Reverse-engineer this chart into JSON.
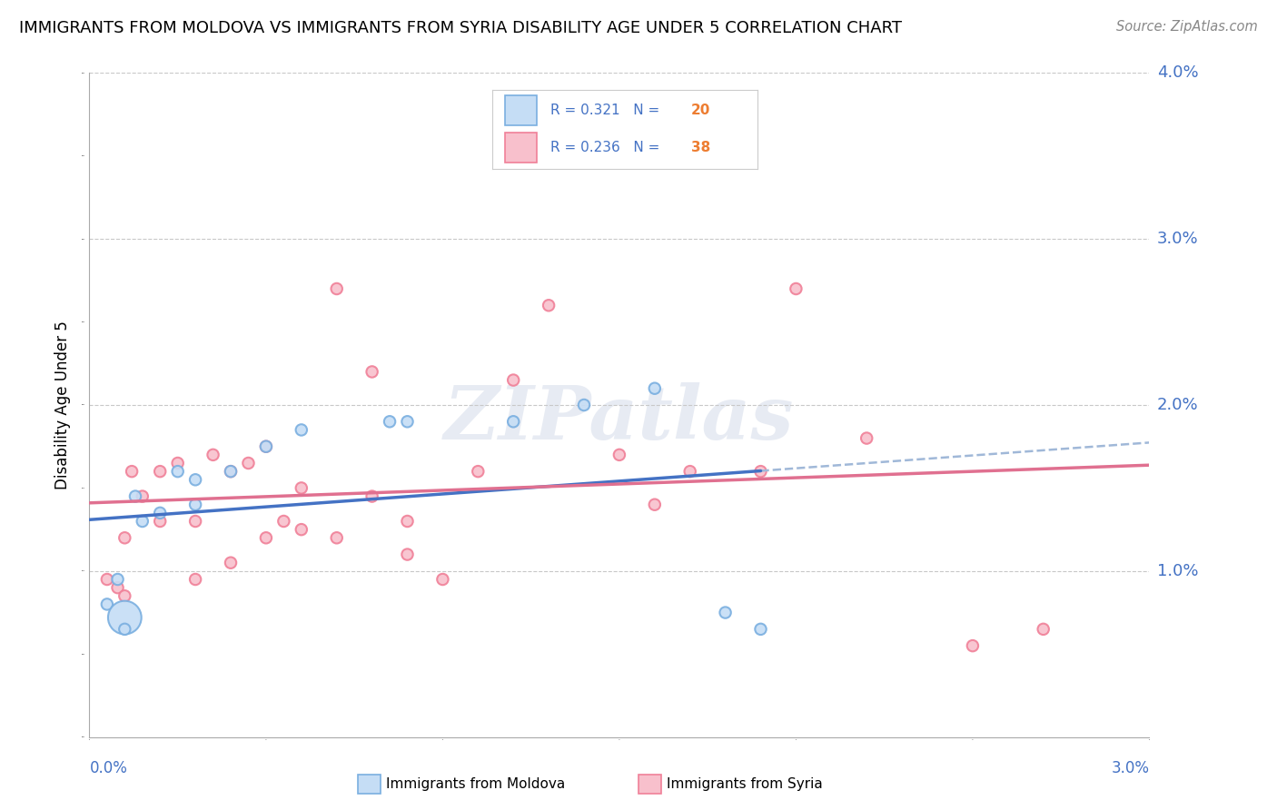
{
  "title": "IMMIGRANTS FROM MOLDOVA VS IMMIGRANTS FROM SYRIA DISABILITY AGE UNDER 5 CORRELATION CHART",
  "source": "Source: ZipAtlas.com",
  "ylabel_label": "Disability Age Under 5",
  "xlabel_bottom_left": "0.0%",
  "xlabel_bottom_right": "3.0%",
  "xlim": [
    0.0,
    0.03
  ],
  "ylim": [
    0.0,
    0.04
  ],
  "yticks": [
    0.01,
    0.02,
    0.03,
    0.04
  ],
  "ytick_labels": [
    "1.0%",
    "2.0%",
    "3.0%",
    "4.0%"
  ],
  "grid_color": "#c8c8c8",
  "background_color": "#ffffff",
  "moldova_color": "#7aafe0",
  "moldova_fill": "#c5ddf5",
  "syria_color": "#f08098",
  "syria_fill": "#f8c0cc",
  "moldova_R": 0.321,
  "moldova_N": 20,
  "syria_R": 0.236,
  "syria_N": 38,
  "legend_R_color": "#4472c4",
  "legend_N_color": "#ed7d31",
  "watermark": "ZIPatlas",
  "moldova_points": [
    [
      0.0005,
      0.008
    ],
    [
      0.0008,
      0.0095
    ],
    [
      0.001,
      0.0072
    ],
    [
      0.001,
      0.0065
    ],
    [
      0.0013,
      0.0145
    ],
    [
      0.0015,
      0.013
    ],
    [
      0.002,
      0.0135
    ],
    [
      0.0025,
      0.016
    ],
    [
      0.003,
      0.0155
    ],
    [
      0.003,
      0.014
    ],
    [
      0.004,
      0.016
    ],
    [
      0.005,
      0.0175
    ],
    [
      0.006,
      0.0185
    ],
    [
      0.0085,
      0.019
    ],
    [
      0.009,
      0.019
    ],
    [
      0.012,
      0.019
    ],
    [
      0.014,
      0.02
    ],
    [
      0.016,
      0.021
    ],
    [
      0.018,
      0.0075
    ],
    [
      0.019,
      0.0065
    ]
  ],
  "syria_points": [
    [
      0.0005,
      0.0095
    ],
    [
      0.0008,
      0.009
    ],
    [
      0.001,
      0.0085
    ],
    [
      0.001,
      0.012
    ],
    [
      0.0012,
      0.016
    ],
    [
      0.0015,
      0.0145
    ],
    [
      0.002,
      0.013
    ],
    [
      0.002,
      0.016
    ],
    [
      0.0025,
      0.0165
    ],
    [
      0.003,
      0.013
    ],
    [
      0.003,
      0.0095
    ],
    [
      0.0035,
      0.017
    ],
    [
      0.004,
      0.016
    ],
    [
      0.004,
      0.0105
    ],
    [
      0.0045,
      0.0165
    ],
    [
      0.005,
      0.0175
    ],
    [
      0.005,
      0.012
    ],
    [
      0.0055,
      0.013
    ],
    [
      0.006,
      0.015
    ],
    [
      0.006,
      0.0125
    ],
    [
      0.007,
      0.027
    ],
    [
      0.007,
      0.012
    ],
    [
      0.008,
      0.022
    ],
    [
      0.008,
      0.0145
    ],
    [
      0.009,
      0.013
    ],
    [
      0.009,
      0.011
    ],
    [
      0.01,
      0.0095
    ],
    [
      0.011,
      0.016
    ],
    [
      0.012,
      0.0215
    ],
    [
      0.013,
      0.026
    ],
    [
      0.015,
      0.017
    ],
    [
      0.016,
      0.014
    ],
    [
      0.017,
      0.016
    ],
    [
      0.019,
      0.016
    ],
    [
      0.02,
      0.027
    ],
    [
      0.022,
      0.018
    ],
    [
      0.025,
      0.0055
    ],
    [
      0.027,
      0.0065
    ]
  ],
  "moldova_bubble_sizes": [
    80,
    80,
    700,
    80,
    80,
    80,
    80,
    80,
    80,
    80,
    80,
    80,
    80,
    80,
    80,
    80,
    80,
    80,
    80,
    80
  ],
  "syria_bubble_sizes": [
    80,
    80,
    80,
    80,
    80,
    80,
    80,
    80,
    80,
    80,
    80,
    80,
    80,
    80,
    80,
    80,
    80,
    80,
    80,
    80,
    80,
    80,
    80,
    80,
    80,
    80,
    80,
    80,
    80,
    80,
    80,
    80,
    80,
    80,
    80,
    80,
    80,
    80
  ],
  "dashed_line_color": "#a0b8d8",
  "solid_blue_color": "#4472c4",
  "solid_pink_color": "#e07090"
}
